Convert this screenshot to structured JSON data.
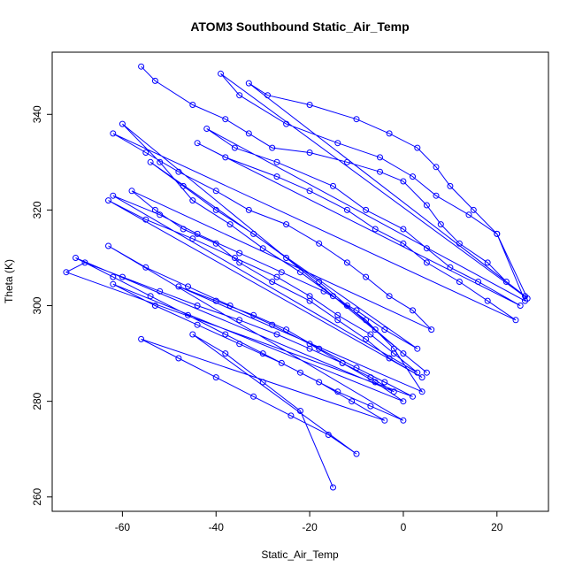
{
  "colors": {
    "series": "#0000ff",
    "axis": "#000000",
    "background": "#ffffff"
  },
  "chart_data": {
    "type": "line",
    "markers": "open-circle",
    "title": "ATOM3 Southbound Static_Air_Temp",
    "xlabel": "Static_Air_Temp",
    "ylabel": "Theta (K)",
    "xlim": [
      -75,
      31
    ],
    "ylim": [
      257,
      353
    ],
    "xticks": [
      -60,
      -40,
      -20,
      0,
      20
    ],
    "yticks": [
      260,
      280,
      300,
      320,
      340
    ],
    "grid": false,
    "legend": "none",
    "series": [
      {
        "x": [
          -56,
          -53,
          -45,
          -38,
          -33,
          -28,
          -20,
          -12,
          -5,
          0,
          5,
          8,
          12,
          18,
          22,
          26,
          -33,
          -29,
          -20,
          -10,
          -3,
          3,
          7,
          10,
          15,
          20,
          26.5,
          -39,
          -35,
          -25,
          -14,
          -5,
          2,
          7,
          14,
          20,
          26,
          -42,
          -36,
          -27,
          -15,
          -8,
          0,
          5,
          10,
          16,
          25,
          -44,
          -38,
          -27,
          -20,
          -12,
          -6,
          0,
          5,
          12,
          18,
          24,
          -62,
          -55,
          -48,
          -40,
          -33,
          -25,
          -18,
          -12,
          -8,
          -3,
          2,
          6,
          -58,
          -53,
          -47,
          -40,
          -35,
          -28,
          -20,
          -14,
          -8,
          -3,
          4,
          -63,
          -55,
          -45,
          -36,
          -27,
          -20,
          -14,
          -7,
          -2,
          3,
          -62,
          -52,
          -44,
          -35,
          -26,
          -17,
          -10,
          -4,
          3,
          -54,
          -47,
          -40,
          -32,
          -25,
          -18,
          -12,
          -6,
          0,
          5,
          -60,
          -52,
          -45,
          -37,
          -30,
          -22,
          -15,
          -8,
          -2,
          4,
          -48,
          -40,
          -32,
          -25,
          -18,
          -10,
          -4,
          2,
          -72,
          -68,
          -60,
          -52,
          -44,
          -35,
          -27,
          -20,
          -13,
          -7,
          -2,
          -70,
          -62,
          -54,
          -46,
          -38,
          -30,
          -22,
          -14,
          -7,
          0,
          -63,
          -55,
          -46,
          -37,
          -28,
          -20,
          -13,
          -6,
          0,
          -62,
          -53,
          -44,
          -35,
          -26,
          -18,
          -11,
          -4,
          -56,
          -48,
          -40,
          -32,
          -24,
          -16,
          -10,
          -45,
          -38,
          -30,
          -22,
          -15
        ],
        "y": [
          350,
          347,
          342,
          339,
          336,
          333,
          332,
          330,
          328,
          326,
          321,
          317,
          313,
          309,
          305,
          302,
          346.5,
          344,
          342,
          339,
          336,
          333,
          329,
          325,
          320,
          315,
          301.5,
          348.5,
          344,
          338,
          334,
          331,
          327,
          323,
          319,
          315,
          301,
          337,
          333,
          330,
          325,
          320,
          316,
          312,
          308,
          305,
          300,
          334,
          331,
          327,
          324,
          320,
          316,
          313,
          309,
          305,
          301,
          297,
          336,
          332,
          328,
          324,
          320,
          317,
          313,
          309,
          306,
          302,
          299,
          295,
          324,
          320,
          316,
          313,
          309,
          305,
          301,
          297,
          293,
          289,
          285,
          322,
          318,
          314,
          310,
          306,
          302,
          298,
          294,
          290,
          286,
          323,
          319,
          315,
          311,
          307,
          303,
          299,
          295,
          291,
          330,
          325,
          320,
          315,
          310,
          305,
          300,
          295,
          290,
          286,
          338,
          330,
          322,
          317,
          312,
          307,
          302,
          297,
          291,
          282,
          304,
          301,
          298,
          295,
          291,
          287,
          284,
          281,
          307,
          309,
          306,
          303,
          300,
          297,
          294,
          291,
          288,
          285,
          282,
          310,
          306,
          302,
          298,
          294,
          290,
          286,
          282,
          279,
          276,
          312.5,
          308,
          304,
          300,
          296,
          292,
          288,
          284,
          280,
          304.5,
          300,
          296,
          292,
          288,
          284,
          280,
          276,
          293,
          289,
          285,
          281,
          277,
          273,
          269,
          294,
          290,
          284,
          278,
          262
        ]
      }
    ]
  }
}
